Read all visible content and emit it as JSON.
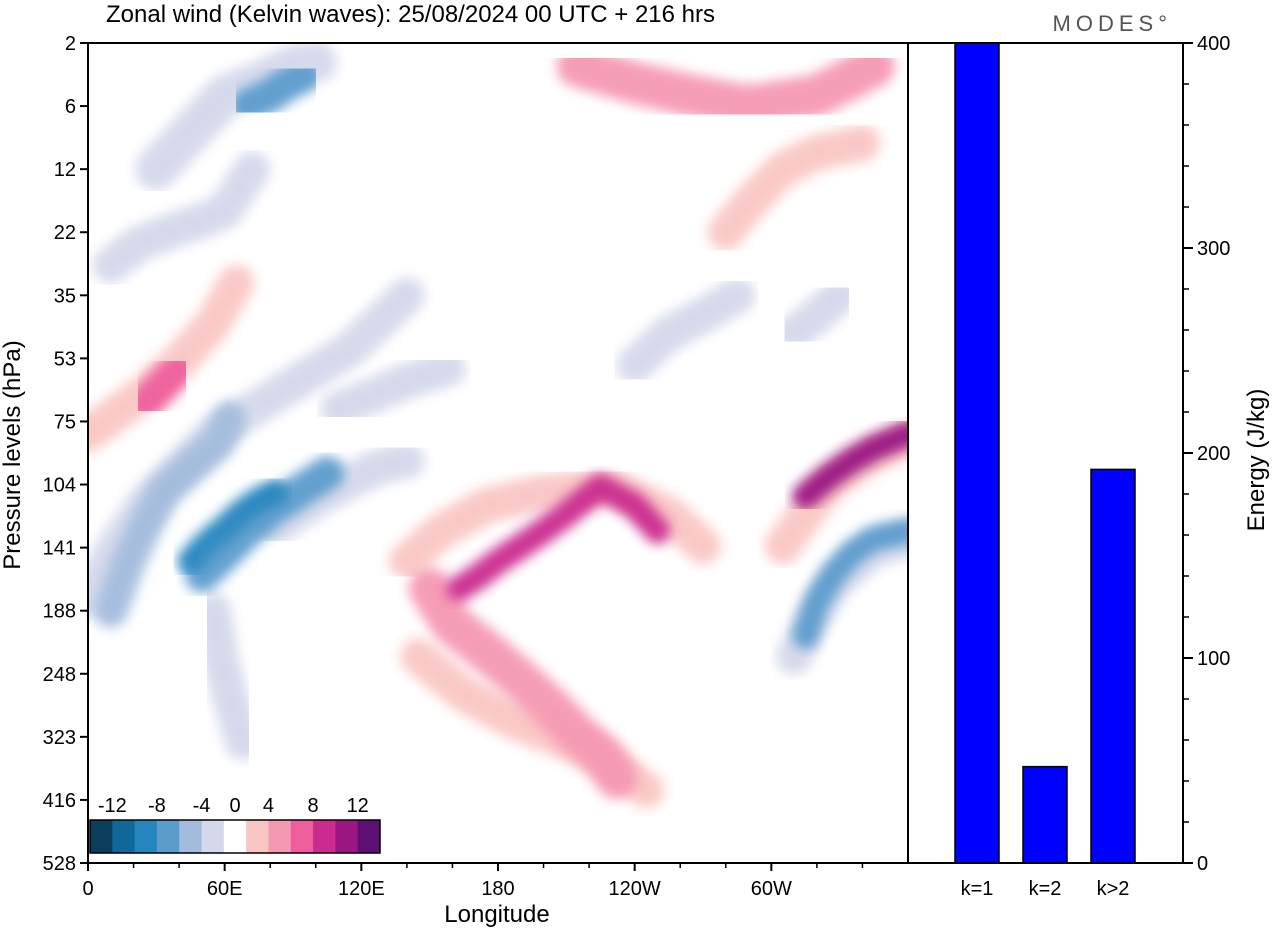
{
  "chart_data": [
    {
      "type": "heatmap",
      "title": "Zonal wind (Kelvin waves):  25/08/2024  00 UTC  + 216 hrs",
      "xlabel": "Longitude",
      "ylabel": "Pressure levels (hPa)",
      "x_ticks": [
        "0",
        "60E",
        "120E",
        "180",
        "120W",
        "60W"
      ],
      "x_tick_degrees": [
        0,
        60,
        120,
        180,
        240,
        300
      ],
      "x_range_degrees": [
        0,
        360
      ],
      "y_ticks": [
        "2",
        "6",
        "12",
        "22",
        "35",
        "53",
        "75",
        "104",
        "141",
        "188",
        "248",
        "323",
        "416",
        "528"
      ],
      "y_scale": "pressure levels, top 2 hPa to bottom 528 hPa",
      "colorbar": {
        "labels": [
          "-12",
          "-8",
          "-4",
          "0",
          "4",
          "8",
          "12"
        ],
        "levels": [
          -14,
          -12,
          -10,
          -8,
          -6,
          -4,
          -2,
          2,
          4,
          6,
          8,
          10,
          12,
          14
        ],
        "colors": [
          "#0b3d5c",
          "#10679a",
          "#2586bf",
          "#5c9ccd",
          "#a3bcdd",
          "#d4d8ea",
          "#ffffff",
          "#f9c6c3",
          "#f598b2",
          "#ee5e9c",
          "#cb2b8f",
          "#9b1683",
          "#5e0f74"
        ]
      },
      "features": [
        {
          "name": "negative band upper",
          "value": -6,
          "path": [
            [
              10,
              188
            ],
            [
              18,
              150
            ],
            [
              25,
              128
            ],
            [
              33,
              108
            ],
            [
              45,
              95
            ],
            [
              57,
              84
            ],
            [
              62,
              74
            ]
          ]
        },
        {
          "name": "negative band upper west",
          "value": -3,
          "path": [
            [
              0,
              178
            ],
            [
              12,
              140
            ],
            [
              25,
              114
            ],
            [
              40,
              96
            ],
            [
              55,
              80
            ],
            [
              80,
              66
            ],
            [
              115,
              50
            ],
            [
              140,
              35
            ]
          ]
        },
        {
          "name": "negative core 45E",
          "value": -10,
          "path": [
            [
              45,
              150
            ],
            [
              50,
              141
            ],
            [
              55,
              134
            ],
            [
              60,
              128
            ],
            [
              68,
              118
            ],
            [
              75,
              112
            ],
            [
              82,
              108
            ]
          ]
        },
        {
          "name": "negative tail 45E",
          "value": -3,
          "path": [
            [
              55,
              188
            ],
            [
              58,
              230
            ],
            [
              62,
              270
            ],
            [
              68,
              330
            ]
          ]
        },
        {
          "name": "negative band 60E",
          "value": -7,
          "path": [
            [
              50,
              160
            ],
            [
              60,
              145
            ],
            [
              70,
              130
            ],
            [
              80,
              118
            ],
            [
              92,
              108
            ],
            [
              105,
              98
            ]
          ]
        },
        {
          "name": "negative band 120E",
          "value": -3,
          "path": [
            [
              82,
              128
            ],
            [
              100,
              112
            ],
            [
              118,
              100
            ],
            [
              130,
              94
            ],
            [
              140,
              92
            ]
          ]
        },
        {
          "name": "negative streak stratosphere",
          "value": -3,
          "path": [
            [
              110,
              70
            ],
            [
              125,
              65
            ],
            [
              140,
              60
            ],
            [
              158,
              56
            ]
          ]
        },
        {
          "name": "negative streak 40hPa",
          "value": -3,
          "path": [
            [
              10,
              28
            ],
            [
              22,
              24
            ],
            [
              35,
              22
            ],
            [
              48,
              20
            ],
            [
              60,
              18
            ],
            [
              72,
              12
            ]
          ]
        },
        {
          "name": "negative band top",
          "value": -4,
          "path": [
            [
              30,
              12
            ],
            [
              45,
              8
            ],
            [
              60,
              5
            ],
            [
              75,
              4
            ],
            [
              90,
              3
            ],
            [
              100,
              2.8
            ]
          ]
        },
        {
          "name": "negative core top",
          "value": -7,
          "path": [
            [
              70,
              6
            ],
            [
              80,
              5
            ],
            [
              88,
              4
            ],
            [
              95,
              3.5
            ]
          ]
        },
        {
          "name": "negative streak 60W",
          "value": -3,
          "path": [
            [
              240,
              55
            ],
            [
              255,
              45
            ],
            [
              270,
              40
            ],
            [
              285,
              35
            ]
          ]
        },
        {
          "name": "negative streak 30W",
          "value": -3,
          "path": [
            [
              310,
              45
            ],
            [
              320,
              40
            ],
            [
              330,
              35
            ]
          ]
        },
        {
          "name": "negative core east",
          "value": -8,
          "path": [
            [
              315,
              210
            ],
            [
              320,
              180
            ],
            [
              327,
              160
            ],
            [
              335,
              145
            ],
            [
              345,
              135
            ],
            [
              360,
              130
            ]
          ]
        },
        {
          "name": "negative fringe east",
          "value": -3,
          "path": [
            [
              310,
              230
            ],
            [
              318,
              195
            ],
            [
              328,
              165
            ],
            [
              345,
              142
            ],
            [
              360,
              136
            ]
          ]
        },
        {
          "name": "positive core 150W-170E",
          "value": 8,
          "path": [
            [
              163,
              170
            ],
            [
              172,
              160
            ],
            [
              180,
              150
            ],
            [
              190,
              140
            ],
            [
              200,
              130
            ],
            [
              210,
              120
            ],
            [
              225,
              105
            ],
            [
              240,
              115
            ],
            [
              250,
              130
            ]
          ]
        },
        {
          "name": "positive band broad",
          "value": 5,
          "path": [
            [
              150,
              170
            ],
            [
              160,
              200
            ],
            [
              175,
              225
            ],
            [
              190,
              255
            ],
            [
              205,
              290
            ],
            [
              215,
              320
            ],
            [
              225,
              345
            ],
            [
              232,
              380
            ]
          ]
        },
        {
          "name": "positive band 180",
          "value": 3,
          "path": [
            [
              140,
              150
            ],
            [
              155,
              130
            ],
            [
              175,
              115
            ],
            [
              200,
              108
            ],
            [
              230,
              105
            ],
            [
              255,
              120
            ],
            [
              270,
              140
            ]
          ]
        },
        {
          "name": "positive fringe lower",
          "value": 2,
          "path": [
            [
              145,
              230
            ],
            [
              165,
              270
            ],
            [
              185,
              300
            ],
            [
              210,
              330
            ],
            [
              230,
              360
            ],
            [
              245,
              400
            ]
          ]
        },
        {
          "name": "positive core east",
          "value": 10,
          "path": [
            [
              315,
              110
            ],
            [
              325,
              100
            ],
            [
              335,
              92
            ],
            [
              345,
              86
            ],
            [
              360,
              80
            ]
          ]
        },
        {
          "name": "positive fringe east",
          "value": 3,
          "path": [
            [
              305,
              140
            ],
            [
              315,
              120
            ],
            [
              325,
              104
            ],
            [
              340,
              92
            ],
            [
              360,
              82
            ]
          ]
        },
        {
          "name": "positive stratosphere west",
          "value": 3,
          "path": [
            [
              0,
              80
            ],
            [
              12,
              72
            ],
            [
              25,
              64
            ],
            [
              40,
              54
            ],
            [
              55,
              42
            ],
            [
              65,
              32
            ]
          ]
        },
        {
          "name": "positive core strat west",
          "value": 6,
          "path": [
            [
              25,
              68
            ],
            [
              32,
              62
            ],
            [
              40,
              56
            ]
          ]
        },
        {
          "name": "positive top",
          "value": 4,
          "path": [
            [
              215,
              3
            ],
            [
              240,
              4
            ],
            [
              265,
              5
            ],
            [
              290,
              6
            ],
            [
              320,
              5
            ],
            [
              345,
              3
            ]
          ]
        },
        {
          "name": "positive streak 60W",
          "value": 3,
          "path": [
            [
              280,
              22
            ],
            [
              292,
              16
            ],
            [
              305,
              12
            ],
            [
              320,
              10
            ],
            [
              340,
              9
            ]
          ]
        }
      ]
    },
    {
      "type": "bar",
      "categories": [
        "k=1",
        "k=2",
        "k>2"
      ],
      "values": [
        400,
        47,
        192
      ],
      "ylabel": "Energy (J/kg)",
      "ylim": [
        0,
        400
      ],
      "y_ticks": [
        0,
        100,
        200,
        300,
        400
      ],
      "bar_color": "#0000ff"
    }
  ],
  "branding": {
    "logo": "MODES°"
  }
}
